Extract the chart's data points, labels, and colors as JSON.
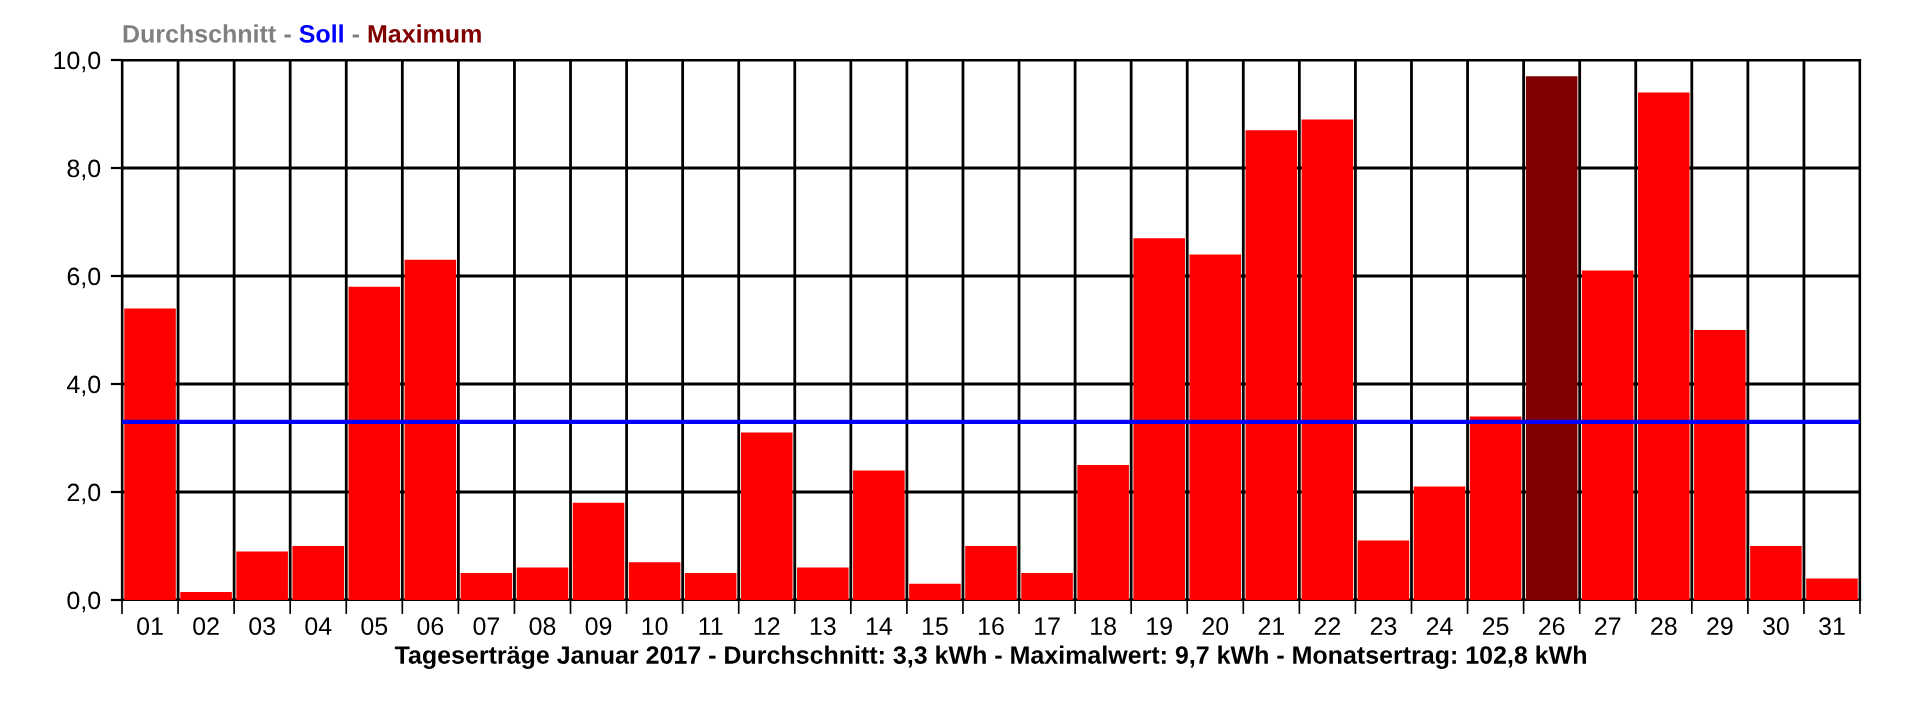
{
  "chart_data": {
    "type": "bar",
    "title": "Durchschnitt - Soll - Maximum",
    "xlabel": "Tageserträge Januar 2017 - Durchschnitt: 3,3 kWh - Maximalwert: 9,7 kWh - Monatsertrag: 102,8 kWh",
    "categories": [
      "01",
      "02",
      "03",
      "04",
      "05",
      "06",
      "07",
      "08",
      "09",
      "10",
      "11",
      "12",
      "13",
      "14",
      "15",
      "16",
      "17",
      "18",
      "19",
      "20",
      "21",
      "22",
      "23",
      "24",
      "25",
      "26",
      "27",
      "28",
      "29",
      "30",
      "31"
    ],
    "values": [
      5.4,
      0.15,
      0.9,
      1.0,
      5.8,
      6.3,
      0.5,
      0.6,
      1.8,
      0.7,
      0.5,
      3.1,
      0.6,
      2.4,
      0.3,
      1.0,
      0.5,
      2.5,
      6.7,
      6.4,
      8.7,
      8.9,
      1.1,
      2.1,
      3.4,
      9.7,
      6.1,
      9.4,
      5.0,
      1.0,
      0.4
    ],
    "colors": [
      "#ff0000",
      "#ff0000",
      "#ff0000",
      "#ff0000",
      "#ff0000",
      "#ff0000",
      "#ff0000",
      "#ff0000",
      "#ff0000",
      "#ff0000",
      "#ff0000",
      "#ff0000",
      "#ff0000",
      "#ff0000",
      "#ff0000",
      "#ff0000",
      "#ff0000",
      "#ff0000",
      "#ff0000",
      "#ff0000",
      "#ff0000",
      "#ff0000",
      "#ff0000",
      "#ff0000",
      "#ff0000",
      "#800000",
      "#ff0000",
      "#ff0000",
      "#ff0000",
      "#ff0000",
      "#ff0000"
    ],
    "ylim": [
      0,
      10
    ],
    "yticks": [
      {
        "value": 0,
        "label": "0,0"
      },
      {
        "value": 2,
        "label": "2,0"
      },
      {
        "value": 4,
        "label": "4,0"
      },
      {
        "value": 6,
        "label": "6,0"
      },
      {
        "value": 8,
        "label": "8,0"
      },
      {
        "value": 10,
        "label": "10,0"
      }
    ],
    "ref_lines": [
      {
        "axis": "y",
        "value": 3.3,
        "color": "#0000ff"
      }
    ],
    "grid": true
  }
}
